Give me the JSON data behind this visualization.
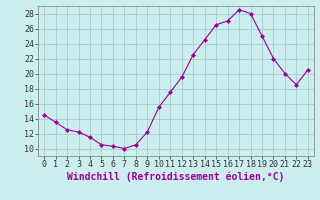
{
  "x": [
    0,
    1,
    2,
    3,
    4,
    5,
    6,
    7,
    8,
    9,
    10,
    11,
    12,
    13,
    14,
    15,
    16,
    17,
    18,
    19,
    20,
    21,
    22,
    23
  ],
  "y": [
    14.5,
    13.5,
    12.5,
    12.2,
    11.5,
    10.5,
    10.3,
    10.0,
    10.5,
    12.2,
    15.5,
    17.5,
    19.5,
    22.5,
    24.5,
    26.5,
    27.0,
    28.5,
    28.0,
    25.0,
    22.0,
    20.0,
    18.5,
    20.5
  ],
  "line_color": "#990099",
  "marker": "D",
  "marker_size": 2,
  "bg_color": "#cceeee",
  "grid_color": "#aacccc",
  "xlabel": "Windchill (Refroidissement éolien,°C)",
  "xlabel_fontsize": 7,
  "xlim": [
    -0.5,
    23.5
  ],
  "ylim": [
    9,
    29
  ],
  "yticks": [
    10,
    12,
    14,
    16,
    18,
    20,
    22,
    24,
    26,
    28
  ],
  "xticks": [
    0,
    1,
    2,
    3,
    4,
    5,
    6,
    7,
    8,
    9,
    10,
    11,
    12,
    13,
    14,
    15,
    16,
    17,
    18,
    19,
    20,
    21,
    22,
    23
  ],
  "tick_fontsize": 6,
  "spine_color": "#888888"
}
